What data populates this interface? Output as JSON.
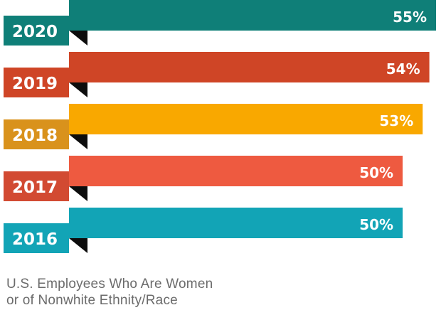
{
  "colors": {
    "fold": "#0d0d0d"
  },
  "caption": {
    "line1": "U.S. Employees Who Are Women",
    "line2": "or of Nonwhite Ethnity/Race"
  },
  "chart_data": {
    "type": "bar",
    "orientation": "horizontal",
    "title": "",
    "xlabel": "",
    "ylabel": "",
    "xlim": [
      0,
      55
    ],
    "grid": false,
    "categories": [
      "2020",
      "2019",
      "2018",
      "2017",
      "2016"
    ],
    "values": [
      55,
      54,
      53,
      50,
      50
    ],
    "value_labels": [
      "55%",
      "54%",
      "53%",
      "50%",
      "50%"
    ],
    "colors": [
      "#0f7f78",
      "#cf4526",
      "#f9a800",
      "#ee5a40",
      "#12a4b6"
    ],
    "tab_colors": [
      "#0f7f78",
      "#cf4526",
      "#d9921c",
      "#d24a32",
      "#12a4b6"
    ]
  }
}
